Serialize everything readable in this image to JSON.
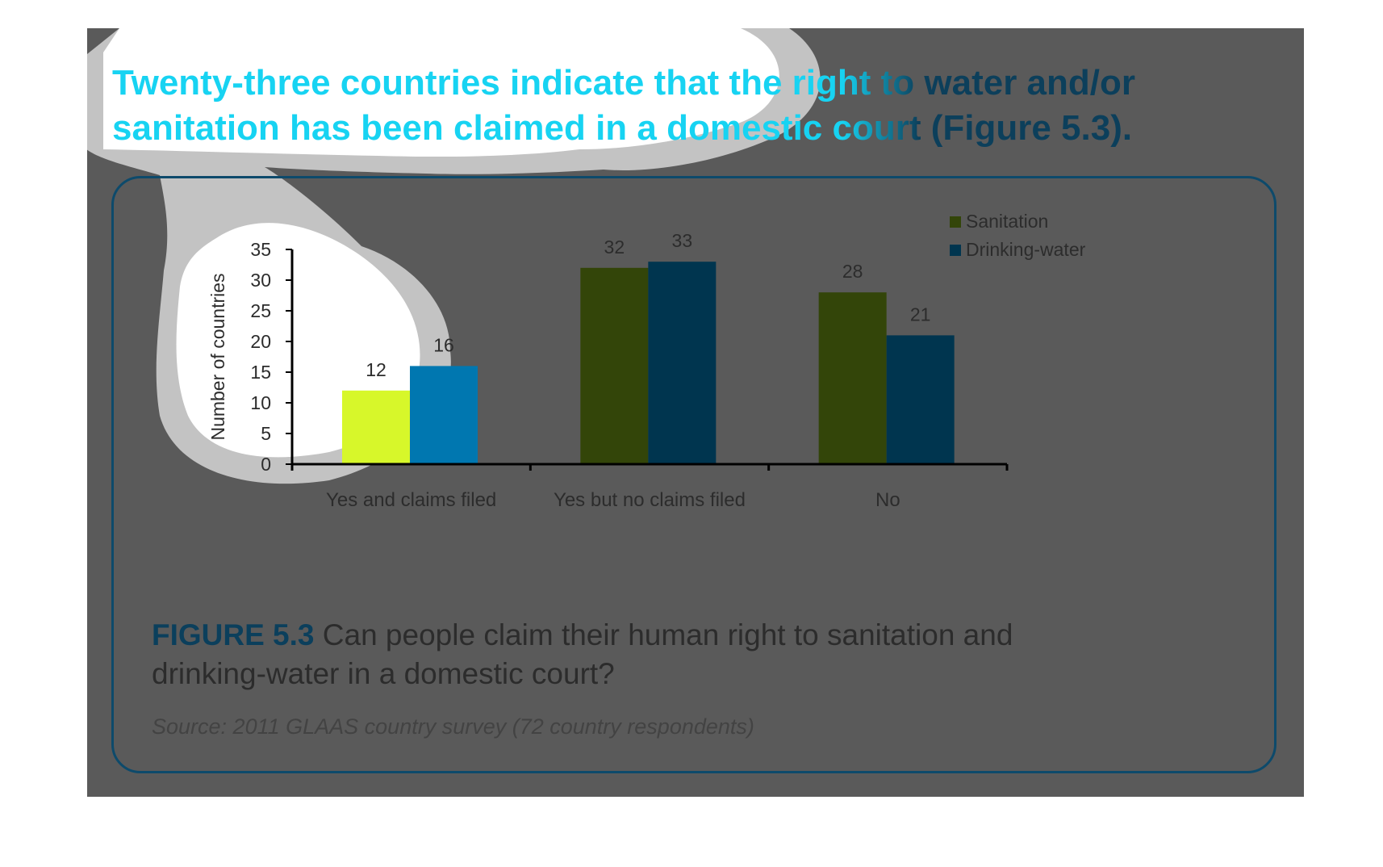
{
  "headline": "Twenty-three countries indicate that the right to water and/or sanitation has been claimed in a domestic court (Figure 5.3).",
  "caption": {
    "label": "FIGURE 5.3",
    "text": " Can people claim their human right to sanitation and drinking-water in a domestic court?"
  },
  "source": "Source: 2011 GLAAS country survey (72 country respondents)",
  "colors": {
    "sanitation": "#334509",
    "drinking_water": "#00354f",
    "sanitation_highlight": "#d7f72a",
    "drinking_water_highlight": "#0077b0",
    "headline": "#17d3f2",
    "frame": "#0d4a6b"
  },
  "chart_data": {
    "type": "bar",
    "title": "",
    "xlabel": "",
    "ylabel": "Number of countries",
    "categories": [
      "Yes and claims filed",
      "Yes but no claims filed",
      "No"
    ],
    "series": [
      {
        "name": "Sanitation",
        "values": [
          12,
          32,
          28
        ]
      },
      {
        "name": "Drinking-water",
        "values": [
          16,
          33,
          21
        ]
      }
    ],
    "ylim": [
      0,
      35
    ],
    "yticks": [
      "0",
      "5",
      "10",
      "15",
      "20",
      "25",
      "30",
      "35"
    ],
    "grid": false,
    "legend": "top-right",
    "data_labels": true
  }
}
